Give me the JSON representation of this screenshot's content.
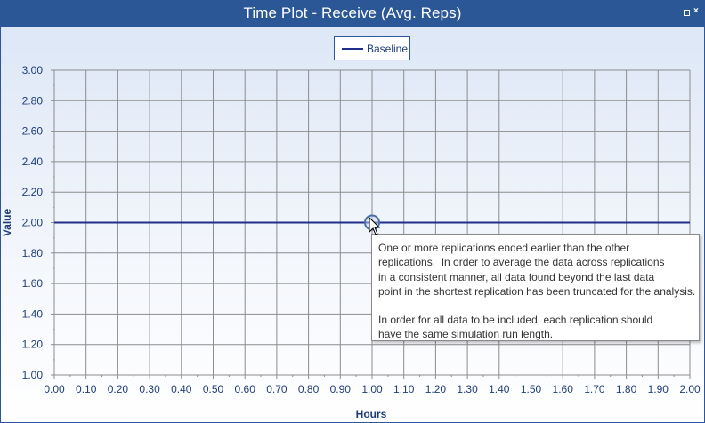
{
  "window": {
    "title": "Time Plot - Receive (Avg. Reps)",
    "restore_label": "restore",
    "close_label": "close"
  },
  "legend": {
    "entries": [
      "Baseline"
    ]
  },
  "tooltip": {
    "paragraph1": [
      "One or more replications ended earlier than the other",
      "replications.  In order to average the data across replications",
      "in a consistent manner, all data found beyond the last data",
      "point in the shortest replication has been truncated for the analysis."
    ],
    "paragraph2": [
      "In order for all data to be included, each replication should",
      "have the same simulation run length."
    ]
  },
  "chart_data": {
    "type": "line",
    "title": "Time Plot - Receive (Avg. Reps)",
    "xlabel": "Hours",
    "ylabel": "Value",
    "xlim": [
      0,
      2
    ],
    "ylim": [
      1,
      3
    ],
    "x_ticks": [
      "0.00",
      "0.10",
      "0.20",
      "0.30",
      "0.40",
      "0.50",
      "0.60",
      "0.70",
      "0.80",
      "0.90",
      "1.00",
      "1.10",
      "1.20",
      "1.30",
      "1.40",
      "1.50",
      "1.60",
      "1.70",
      "1.80",
      "1.90",
      "2.00"
    ],
    "y_ticks": [
      "1.00",
      "1.20",
      "1.40",
      "1.60",
      "1.80",
      "2.00",
      "2.20",
      "2.40",
      "2.60",
      "2.80",
      "3.00"
    ],
    "grid": true,
    "legend_position": "top-center",
    "series": [
      {
        "name": "Baseline",
        "x": [
          0,
          2
        ],
        "y": [
          2,
          2
        ],
        "color": "#1f2f8a"
      }
    ],
    "highlight_point": {
      "x": 1.0,
      "y": 2.0
    }
  },
  "colors": {
    "title_bar": "#2b5797",
    "axis_text": "#1f3d7a",
    "grid": "#8c8c8c",
    "series": "#1f2f8a"
  }
}
